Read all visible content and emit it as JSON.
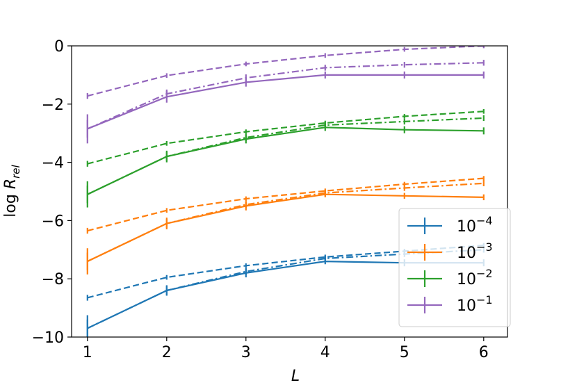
{
  "chart_data": {
    "type": "line",
    "xlabel": "L",
    "ylabel": "log R_rel",
    "xlim": [
      0.8,
      6.3
    ],
    "ylim": [
      -10,
      0
    ],
    "x_ticks": [
      1,
      2,
      3,
      4,
      5,
      6
    ],
    "x_tick_labels": [
      "1",
      "2",
      "3",
      "4",
      "5",
      "6"
    ],
    "y_ticks": [
      0,
      -2,
      -4,
      -6,
      -8,
      -10
    ],
    "y_tick_labels": [
      "0",
      "−2",
      "−4",
      "−6",
      "−8",
      "−10"
    ],
    "grid": false,
    "legend_position": "lower-right",
    "legend_entries": [
      {
        "base": "10",
        "exp": "−4",
        "color": "#1f77b4"
      },
      {
        "base": "10",
        "exp": "−3",
        "color": "#ff7f0e"
      },
      {
        "base": "10",
        "exp": "−2",
        "color": "#2ca02c"
      },
      {
        "base": "10",
        "exp": "−1",
        "color": "#9467bd"
      }
    ],
    "x": [
      1,
      2,
      3,
      4,
      5,
      6
    ],
    "series": [
      {
        "group": "1e-4",
        "style": "solid",
        "color": "#1f77b4",
        "values": [
          -9.7,
          -8.4,
          -7.8,
          -7.4,
          -7.45,
          -7.45
        ],
        "err": [
          0.45,
          0.18,
          0.15,
          0.1,
          0.12,
          0.12
        ]
      },
      {
        "group": "1e-4",
        "style": "dashdot",
        "color": "#1f77b4",
        "values": [
          -9.7,
          -8.4,
          -7.75,
          -7.3,
          -7.15,
          -7.0
        ],
        "err": [
          0.3,
          0.15,
          0.12,
          0.1,
          0.1,
          0.1
        ]
      },
      {
        "group": "1e-4",
        "style": "dashed",
        "color": "#1f77b4",
        "values": [
          -8.65,
          -7.95,
          -7.55,
          -7.25,
          -7.05,
          -6.85
        ],
        "err": [
          0.1,
          0.08,
          0.08,
          0.08,
          0.08,
          0.08
        ]
      },
      {
        "group": "1e-3",
        "style": "solid",
        "color": "#ff7f0e",
        "values": [
          -7.4,
          -6.1,
          -5.5,
          -5.1,
          -5.15,
          -5.2
        ],
        "err": [
          0.45,
          0.2,
          0.15,
          0.1,
          0.1,
          0.1
        ]
      },
      {
        "group": "1e-3",
        "style": "dashdot",
        "color": "#ff7f0e",
        "values": [
          -7.4,
          -6.1,
          -5.45,
          -5.05,
          -4.88,
          -4.72
        ],
        "err": [
          0.3,
          0.15,
          0.12,
          0.1,
          0.1,
          0.1
        ]
      },
      {
        "group": "1e-3",
        "style": "dashed",
        "color": "#ff7f0e",
        "values": [
          -6.35,
          -5.65,
          -5.25,
          -4.98,
          -4.75,
          -4.55
        ],
        "err": [
          0.1,
          0.08,
          0.08,
          0.08,
          0.08,
          0.08
        ]
      },
      {
        "group": "1e-2",
        "style": "solid",
        "color": "#2ca02c",
        "values": [
          -5.1,
          -3.8,
          -3.2,
          -2.8,
          -2.88,
          -2.92
        ],
        "err": [
          0.45,
          0.2,
          0.15,
          0.12,
          0.12,
          0.12
        ]
      },
      {
        "group": "1e-2",
        "style": "dashdot",
        "color": "#2ca02c",
        "values": [
          -5.1,
          -3.8,
          -3.15,
          -2.72,
          -2.6,
          -2.48
        ],
        "err": [
          0.3,
          0.15,
          0.12,
          0.1,
          0.1,
          0.1
        ]
      },
      {
        "group": "1e-2",
        "style": "dashed",
        "color": "#2ca02c",
        "values": [
          -4.05,
          -3.35,
          -2.95,
          -2.65,
          -2.42,
          -2.25
        ],
        "err": [
          0.1,
          0.08,
          0.08,
          0.08,
          0.08,
          0.08
        ]
      },
      {
        "group": "1e-1",
        "style": "solid",
        "color": "#9467bd",
        "values": [
          -2.85,
          -1.75,
          -1.25,
          -1.0,
          -1.0,
          -1.0
        ],
        "err": [
          0.5,
          0.2,
          0.15,
          0.12,
          0.12,
          0.12
        ]
      },
      {
        "group": "1e-1",
        "style": "dashdot",
        "color": "#9467bd",
        "values": [
          -2.85,
          -1.65,
          -1.1,
          -0.75,
          -0.65,
          -0.58
        ],
        "err": [
          0.3,
          0.15,
          0.12,
          0.1,
          0.1,
          0.1
        ]
      },
      {
        "group": "1e-1",
        "style": "dashed",
        "color": "#9467bd",
        "values": [
          -1.72,
          -1.02,
          -0.62,
          -0.33,
          -0.12,
          0.0
        ],
        "err": [
          0.1,
          0.08,
          0.08,
          0.08,
          0.08,
          0.08
        ]
      }
    ]
  }
}
